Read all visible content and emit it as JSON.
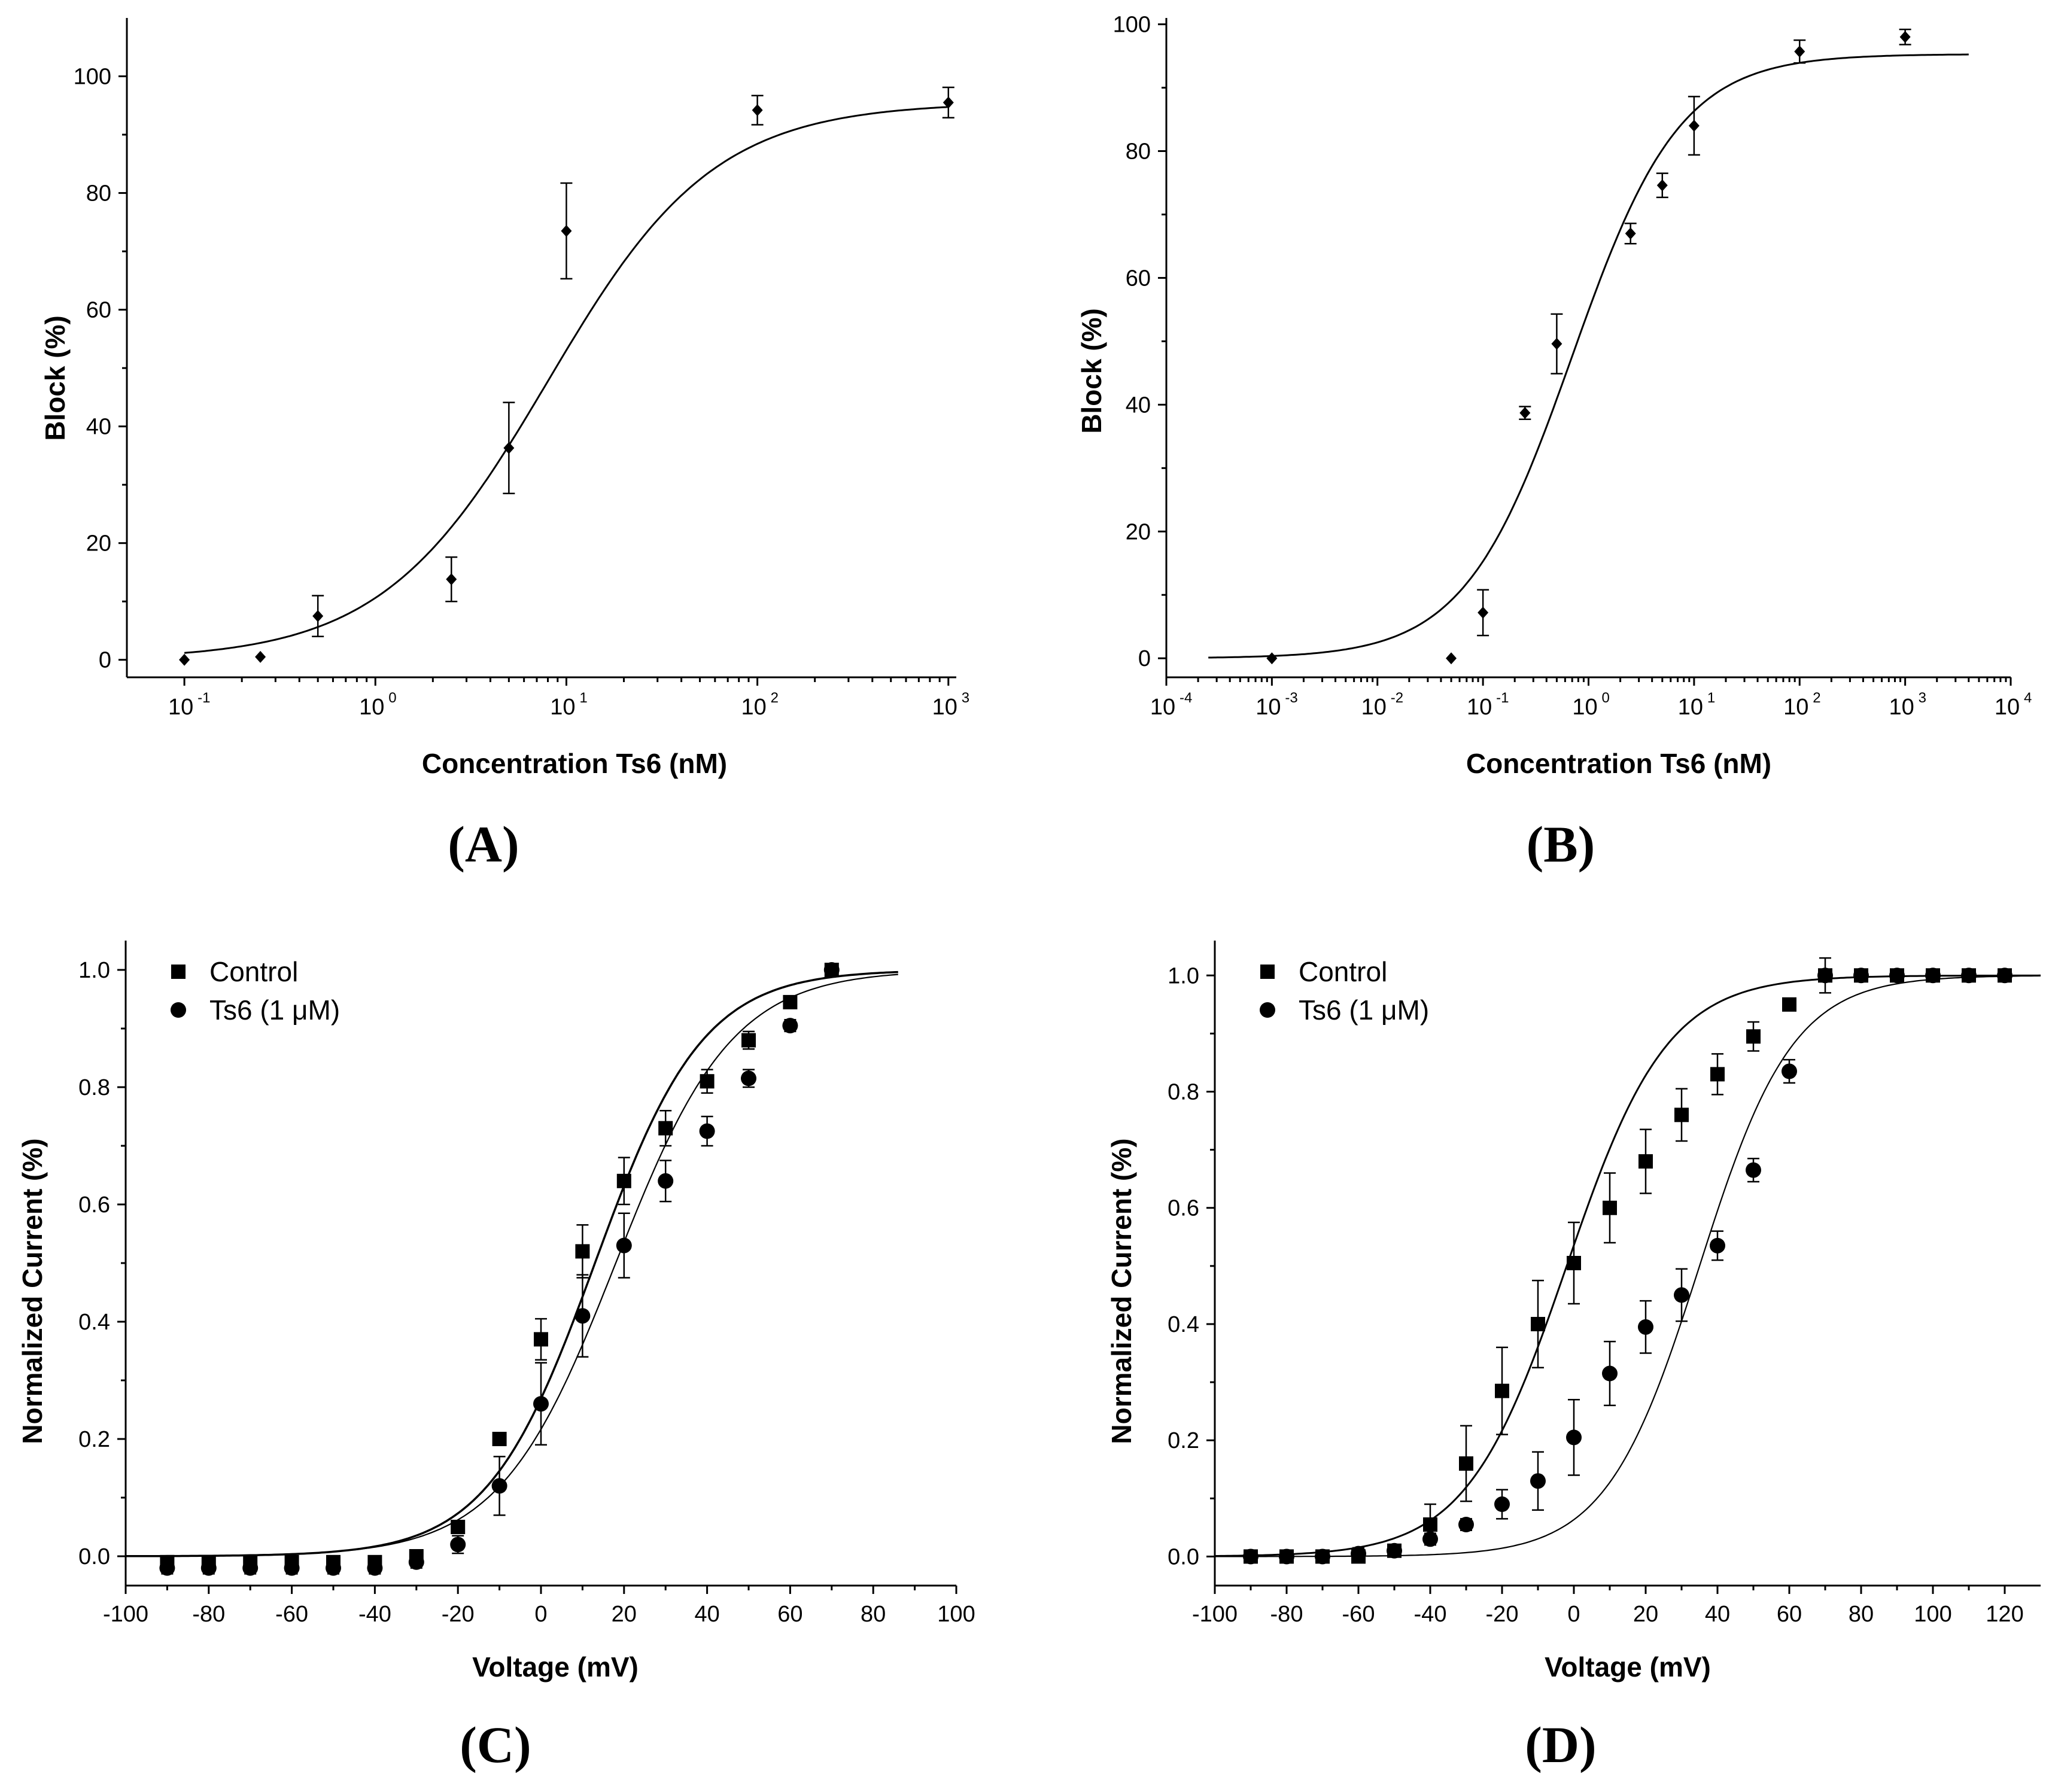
{
  "chart_data": [
    {
      "id": "A",
      "type": "scatter",
      "panel_label": "(A)",
      "xlabel": "Concentration Ts6 (nM)",
      "ylabel": "Block (%)",
      "xscale": "log",
      "xlim": [
        0.05,
        1100
      ],
      "ylim": [
        -3,
        110
      ],
      "xticks": [
        {
          "base": "10",
          "exp": "-1",
          "v": 0.1
        },
        {
          "base": "10",
          "exp": "0",
          "v": 1
        },
        {
          "base": "10",
          "exp": "1",
          "v": 10
        },
        {
          "base": "10",
          "exp": "2",
          "v": 100
        },
        {
          "base": "10",
          "exp": "3",
          "v": 1000
        }
      ],
      "yticks": [
        "0",
        "20",
        "40",
        "60",
        "80",
        "100"
      ],
      "series": [
        {
          "name": "Ts6 block",
          "marker": "diamond",
          "points": [
            {
              "x": 0.1,
              "y": 0,
              "err": 0
            },
            {
              "x": 0.25,
              "y": 0.5,
              "err": 0
            },
            {
              "x": 0.5,
              "y": 7.5,
              "err": 3.5
            },
            {
              "x": 2.5,
              "y": 13.8,
              "err": 3.8
            },
            {
              "x": 5,
              "y": 36.3,
              "err": 7.8
            },
            {
              "x": 10,
              "y": 73.5,
              "err": 8.2
            },
            {
              "x": 100,
              "y": 94.2,
              "err": 2.5
            },
            {
              "x": 1000,
              "y": 95.5,
              "err": 2.6
            }
          ],
          "fit": {
            "model": "hill",
            "ic50": 8.0,
            "hill": 1.0,
            "top": 95.5,
            "bottom": 0,
            "xfrom": 0.1,
            "xto": 1000
          }
        }
      ]
    },
    {
      "id": "B",
      "type": "scatter",
      "panel_label": "(B)",
      "xlabel": "Concentration Ts6 (nM)",
      "ylabel": "Block (%)",
      "xscale": "log",
      "xlim": [
        0.0001,
        10000
      ],
      "ylim": [
        -3,
        101
      ],
      "xticks": [
        {
          "base": "10",
          "exp": "-4",
          "v": 0.0001
        },
        {
          "base": "10",
          "exp": "-3",
          "v": 0.001
        },
        {
          "base": "10",
          "exp": "-2",
          "v": 0.01
        },
        {
          "base": "10",
          "exp": "-1",
          "v": 0.1
        },
        {
          "base": "10",
          "exp": "0",
          "v": 1
        },
        {
          "base": "10",
          "exp": "1",
          "v": 10
        },
        {
          "base": "10",
          "exp": "2",
          "v": 100
        },
        {
          "base": "10",
          "exp": "3",
          "v": 1000
        },
        {
          "base": "10",
          "exp": "4",
          "v": 10000
        }
      ],
      "yticks": [
        "0",
        "20",
        "40",
        "60",
        "80",
        "100"
      ],
      "series": [
        {
          "name": "Ts6 block",
          "marker": "diamond",
          "points": [
            {
              "x": 0.001,
              "y": 0,
              "err": 0
            },
            {
              "x": 0.05,
              "y": 0,
              "err": 0
            },
            {
              "x": 0.1,
              "y": 7.2,
              "err": 3.6
            },
            {
              "x": 0.25,
              "y": 38.7,
              "err": 1
            },
            {
              "x": 0.5,
              "y": 49.6,
              "err": 4.7
            },
            {
              "x": 2.5,
              "y": 67,
              "err": 1.6
            },
            {
              "x": 5,
              "y": 74.6,
              "err": 1.9
            },
            {
              "x": 10,
              "y": 84,
              "err": 4.6
            },
            {
              "x": 100,
              "y": 95.7,
              "err": 1.8
            },
            {
              "x": 1000,
              "y": 98,
              "err": 1.2
            }
          ],
          "fit": {
            "model": "hill",
            "ic50": 0.7,
            "hill": 0.85,
            "top": 95.3,
            "bottom": 0,
            "xfrom": 0.00025,
            "xto": 4000
          }
        }
      ]
    },
    {
      "id": "C",
      "type": "scatter",
      "panel_label": "(C)",
      "xlabel": "Voltage (mV)",
      "ylabel": "Normalized Current (%)",
      "xscale": "linear",
      "xlim": [
        -100,
        100
      ],
      "ylim": [
        -0.05,
        1.05
      ],
      "xticks": [
        "-100",
        "-80",
        "-60",
        "-40",
        "-20",
        "0",
        "20",
        "40",
        "60",
        "80",
        "100"
      ],
      "yticks": [
        "0.0",
        "0.2",
        "0.4",
        "0.6",
        "0.8",
        "1.0"
      ],
      "legend": {
        "position": "top-left"
      },
      "series": [
        {
          "name": "Control",
          "marker": "square",
          "fit_stroke": 3.5,
          "points": [
            {
              "x": -90,
              "y": -0.01,
              "err": 0.01
            },
            {
              "x": -80,
              "y": -0.01,
              "err": 0.01
            },
            {
              "x": -70,
              "y": -0.01,
              "err": 0.01
            },
            {
              "x": -60,
              "y": -0.01,
              "err": 0.01
            },
            {
              "x": -50,
              "y": -0.01,
              "err": 0.01
            },
            {
              "x": -40,
              "y": -0.01,
              "err": 0.01
            },
            {
              "x": -30,
              "y": 0,
              "err": 0.01
            },
            {
              "x": -20,
              "y": 0.05,
              "err": 0.01
            },
            {
              "x": -10,
              "y": 0.2,
              "err": 0.01
            },
            {
              "x": 0,
              "y": 0.37,
              "err": 0.035
            },
            {
              "x": 10,
              "y": 0.52,
              "err": 0.045
            },
            {
              "x": 20,
              "y": 0.64,
              "err": 0.04
            },
            {
              "x": 30,
              "y": 0.73,
              "err": 0.03
            },
            {
              "x": 40,
              "y": 0.81,
              "err": 0.02
            },
            {
              "x": 50,
              "y": 0.88,
              "err": 0.015
            },
            {
              "x": 60,
              "y": 0.945,
              "err": 0.01
            },
            {
              "x": 70,
              "y": 1.0,
              "err": 0.01
            }
          ],
          "fit": {
            "model": "boltzmann",
            "v50": 13,
            "k": 13,
            "xfrom": -100,
            "xto": 86
          }
        },
        {
          "name": "Ts6 (1 μM)",
          "marker": "circle",
          "fit_stroke": 2.2,
          "points": [
            {
              "x": -90,
              "y": -0.02,
              "err": 0.01
            },
            {
              "x": -80,
              "y": -0.02,
              "err": 0.01
            },
            {
              "x": -70,
              "y": -0.02,
              "err": 0.01
            },
            {
              "x": -60,
              "y": -0.02,
              "err": 0.01
            },
            {
              "x": -50,
              "y": -0.02,
              "err": 0.01
            },
            {
              "x": -40,
              "y": -0.02,
              "err": 0.01
            },
            {
              "x": -30,
              "y": -0.01,
              "err": 0.01
            },
            {
              "x": -20,
              "y": 0.02,
              "err": 0.015
            },
            {
              "x": -10,
              "y": 0.12,
              "err": 0.05
            },
            {
              "x": 0,
              "y": 0.26,
              "err": 0.07
            },
            {
              "x": 10,
              "y": 0.41,
              "err": 0.07
            },
            {
              "x": 20,
              "y": 0.53,
              "err": 0.055
            },
            {
              "x": 30,
              "y": 0.64,
              "err": 0.035
            },
            {
              "x": 40,
              "y": 0.725,
              "err": 0.025
            },
            {
              "x": 50,
              "y": 0.815,
              "err": 0.015
            },
            {
              "x": 60,
              "y": 0.905,
              "err": 0.01
            },
            {
              "x": 70,
              "y": 1.0,
              "err": 0.01
            }
          ],
          "fit": {
            "model": "boltzmann",
            "v50": 18,
            "k": 14,
            "xfrom": -100,
            "xto": 86
          }
        }
      ]
    },
    {
      "id": "D",
      "type": "scatter",
      "panel_label": "(D)",
      "xlabel": "Voltage (mV)",
      "ylabel": "Normalized Current (%)",
      "xscale": "linear",
      "xlim": [
        -100,
        130
      ],
      "ylim": [
        -0.05,
        1.06
      ],
      "xticks": [
        "-100",
        "-80",
        "-60",
        "-40",
        "-20",
        "0",
        "20",
        "40",
        "60",
        "80",
        "100",
        "120"
      ],
      "yticks": [
        "0.0",
        "0.2",
        "0.4",
        "0.6",
        "0.8",
        "1.0"
      ],
      "legend": {
        "position": "top-left"
      },
      "series": [
        {
          "name": "Control",
          "marker": "square",
          "fit_stroke": 3,
          "points": [
            {
              "x": -90,
              "y": 0,
              "err": 0.01
            },
            {
              "x": -80,
              "y": 0,
              "err": 0.01
            },
            {
              "x": -70,
              "y": 0,
              "err": 0.01
            },
            {
              "x": -60,
              "y": 0,
              "err": 0.01
            },
            {
              "x": -50,
              "y": 0.01,
              "err": 0.01
            },
            {
              "x": -40,
              "y": 0.055,
              "err": 0.035
            },
            {
              "x": -30,
              "y": 0.16,
              "err": 0.065
            },
            {
              "x": -20,
              "y": 0.285,
              "err": 0.075
            },
            {
              "x": -10,
              "y": 0.4,
              "err": 0.075
            },
            {
              "x": 0,
              "y": 0.505,
              "err": 0.07
            },
            {
              "x": 10,
              "y": 0.6,
              "err": 0.06
            },
            {
              "x": 20,
              "y": 0.68,
              "err": 0.055
            },
            {
              "x": 30,
              "y": 0.76,
              "err": 0.045
            },
            {
              "x": 40,
              "y": 0.83,
              "err": 0.035
            },
            {
              "x": 50,
              "y": 0.895,
              "err": 0.025
            },
            {
              "x": 60,
              "y": 0.95,
              "err": 0.01
            },
            {
              "x": 70,
              "y": 1.0,
              "err": 0.03
            },
            {
              "x": 80,
              "y": 1.0,
              "err": 0.01
            },
            {
              "x": 90,
              "y": 1.0,
              "err": 0.01
            },
            {
              "x": 100,
              "y": 1.0,
              "err": 0.01
            },
            {
              "x": 110,
              "y": 1.0,
              "err": 0.01
            },
            {
              "x": 120,
              "y": 1.0,
              "err": 0.01
            }
          ],
          "fit": {
            "model": "boltzmann",
            "v50": -2,
            "k": 14,
            "xfrom": -100,
            "xto": 130
          }
        },
        {
          "name": "Ts6 (1 μM)",
          "marker": "circle",
          "fit_stroke": 2.2,
          "points": [
            {
              "x": -90,
              "y": 0,
              "err": 0.01
            },
            {
              "x": -80,
              "y": 0,
              "err": 0.01
            },
            {
              "x": -70,
              "y": 0,
              "err": 0.01
            },
            {
              "x": -60,
              "y": 0.005,
              "err": 0.01
            },
            {
              "x": -50,
              "y": 0.01,
              "err": 0.01
            },
            {
              "x": -40,
              "y": 0.03,
              "err": 0.01
            },
            {
              "x": -30,
              "y": 0.055,
              "err": 0.01
            },
            {
              "x": -20,
              "y": 0.09,
              "err": 0.025
            },
            {
              "x": -10,
              "y": 0.13,
              "err": 0.05
            },
            {
              "x": 0,
              "y": 0.205,
              "err": 0.065
            },
            {
              "x": 10,
              "y": 0.315,
              "err": 0.055
            },
            {
              "x": 20,
              "y": 0.395,
              "err": 0.045
            },
            {
              "x": 30,
              "y": 0.45,
              "err": 0.045
            },
            {
              "x": 40,
              "y": 0.535,
              "err": 0.025
            },
            {
              "x": 50,
              "y": 0.665,
              "err": 0.02
            },
            {
              "x": 60,
              "y": 0.835,
              "err": 0.02
            },
            {
              "x": 70,
              "y": 1.0,
              "err": 0.01
            },
            {
              "x": 80,
              "y": 1.0,
              "err": 0.01
            },
            {
              "x": 90,
              "y": 1.0,
              "err": 0.01
            },
            {
              "x": 100,
              "y": 1.0,
              "err": 0.01
            },
            {
              "x": 110,
              "y": 1.0,
              "err": 0.01
            },
            {
              "x": 120,
              "y": 1.0,
              "err": 0.01
            }
          ],
          "fit": {
            "model": "boltzmann",
            "v50": 35,
            "k": 13,
            "xfrom": -100,
            "xto": 130
          }
        }
      ]
    }
  ]
}
